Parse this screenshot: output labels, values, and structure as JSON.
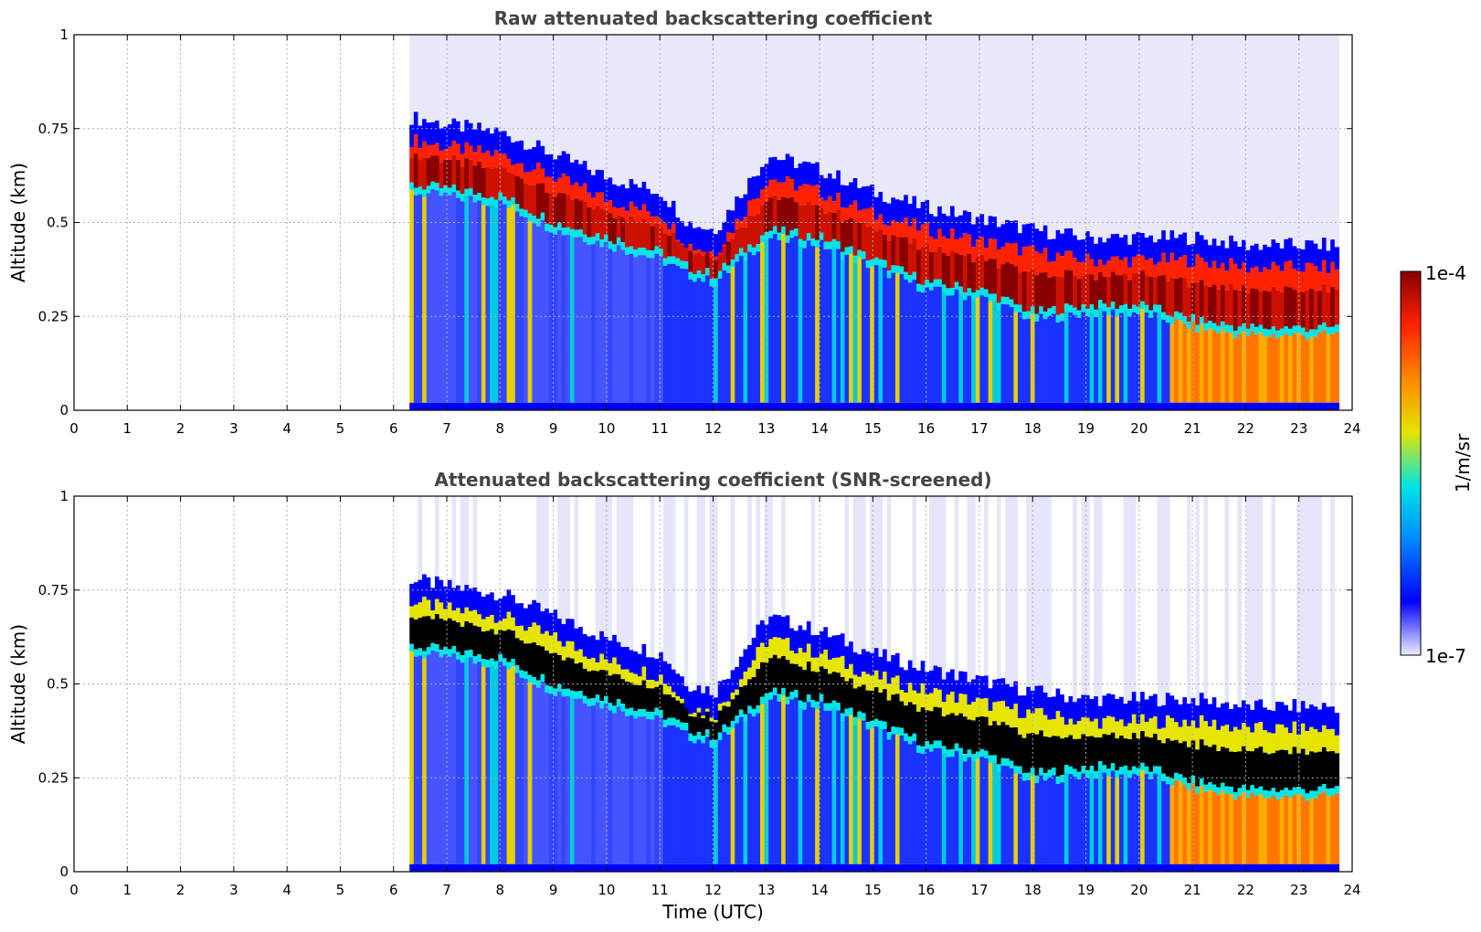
{
  "figure": {
    "xlabel": "Time (UTC)",
    "colorbar": {
      "label": "1/m/sr",
      "min_label": "1e-7",
      "max_label": "1e-4",
      "scale": "log",
      "min": 1e-07,
      "max": 0.0001,
      "colormap": [
        "#eeeeff",
        "#0000ff",
        "#0088ff",
        "#00e5e5",
        "#e5e500",
        "#ff8800",
        "#ff2200",
        "#880000"
      ]
    }
  },
  "chart_data": [
    {
      "type": "heatmap",
      "title": "Raw attenuated backscattering coefficient",
      "xlabel": "",
      "ylabel": "Altitude (km)",
      "xlim": [
        0,
        24
      ],
      "ylim": [
        0,
        1
      ],
      "x_ticks": [
        "0",
        "1",
        "2",
        "3",
        "4",
        "5",
        "6",
        "7",
        "8",
        "9",
        "10",
        "11",
        "12",
        "13",
        "14",
        "15",
        "16",
        "17",
        "18",
        "19",
        "20",
        "21",
        "22",
        "23",
        "24"
      ],
      "y_ticks": [
        "0",
        "0.25",
        "0.5",
        "0.75",
        "1"
      ],
      "grid": true,
      "data_start_time": 6.3,
      "data_end_time": 23.75,
      "layer_top_km": [
        [
          6.3,
          0.72
        ],
        [
          7,
          0.7
        ],
        [
          8,
          0.68
        ],
        [
          9,
          0.62
        ],
        [
          10,
          0.56
        ],
        [
          11,
          0.52
        ],
        [
          11.5,
          0.44
        ],
        [
          12,
          0.42
        ],
        [
          13,
          0.62
        ],
        [
          14,
          0.58
        ],
        [
          15,
          0.52
        ],
        [
          16,
          0.48
        ],
        [
          17,
          0.45
        ],
        [
          18,
          0.42
        ],
        [
          19,
          0.4
        ],
        [
          20,
          0.4
        ],
        [
          21,
          0.4
        ],
        [
          22,
          0.38
        ],
        [
          23,
          0.38
        ],
        [
          23.75,
          0.38
        ]
      ],
      "layer_base_km": [
        [
          6.3,
          0.58
        ],
        [
          7,
          0.57
        ],
        [
          8,
          0.55
        ],
        [
          9,
          0.48
        ],
        [
          10,
          0.44
        ],
        [
          11,
          0.4
        ],
        [
          11.5,
          0.36
        ],
        [
          12,
          0.34
        ],
        [
          13,
          0.46
        ],
        [
          14,
          0.44
        ],
        [
          15,
          0.38
        ],
        [
          16,
          0.32
        ],
        [
          17,
          0.3
        ],
        [
          18,
          0.24
        ],
        [
          19,
          0.26
        ],
        [
          20,
          0.26
        ],
        [
          21,
          0.22
        ],
        [
          22,
          0.2
        ],
        [
          23,
          0.2
        ],
        [
          23.75,
          0.2
        ]
      ],
      "screened": false
    },
    {
      "type": "heatmap",
      "title": "Attenuated backscattering coefficient (SNR-screened)",
      "xlabel": "Time (UTC)",
      "ylabel": "Altitude (km)",
      "xlim": [
        0,
        24
      ],
      "ylim": [
        0,
        1
      ],
      "x_ticks": [
        "0",
        "1",
        "2",
        "3",
        "4",
        "5",
        "6",
        "7",
        "8",
        "9",
        "10",
        "11",
        "12",
        "13",
        "14",
        "15",
        "16",
        "17",
        "18",
        "19",
        "20",
        "21",
        "22",
        "23",
        "24"
      ],
      "y_ticks": [
        "0",
        "0.25",
        "0.5",
        "0.75",
        "1"
      ],
      "grid": true,
      "data_start_time": 6.3,
      "data_end_time": 23.75,
      "layer_top_km": [
        [
          6.3,
          0.72
        ],
        [
          7,
          0.7
        ],
        [
          8,
          0.68
        ],
        [
          9,
          0.62
        ],
        [
          10,
          0.56
        ],
        [
          11,
          0.52
        ],
        [
          11.5,
          0.44
        ],
        [
          12,
          0.42
        ],
        [
          13,
          0.62
        ],
        [
          14,
          0.58
        ],
        [
          15,
          0.52
        ],
        [
          16,
          0.48
        ],
        [
          17,
          0.45
        ],
        [
          18,
          0.42
        ],
        [
          19,
          0.4
        ],
        [
          20,
          0.4
        ],
        [
          21,
          0.4
        ],
        [
          22,
          0.38
        ],
        [
          23,
          0.38
        ],
        [
          23.75,
          0.38
        ]
      ],
      "layer_base_km": [
        [
          6.3,
          0.58
        ],
        [
          7,
          0.57
        ],
        [
          8,
          0.55
        ],
        [
          9,
          0.48
        ],
        [
          10,
          0.44
        ],
        [
          11,
          0.4
        ],
        [
          11.5,
          0.36
        ],
        [
          12,
          0.34
        ],
        [
          13,
          0.46
        ],
        [
          14,
          0.44
        ],
        [
          15,
          0.38
        ],
        [
          16,
          0.32
        ],
        [
          17,
          0.3
        ],
        [
          18,
          0.24
        ],
        [
          19,
          0.26
        ],
        [
          20,
          0.26
        ],
        [
          21,
          0.22
        ],
        [
          22,
          0.2
        ],
        [
          23,
          0.2
        ],
        [
          23.75,
          0.2
        ]
      ],
      "screened": true,
      "saturated_color": "#000000"
    }
  ]
}
